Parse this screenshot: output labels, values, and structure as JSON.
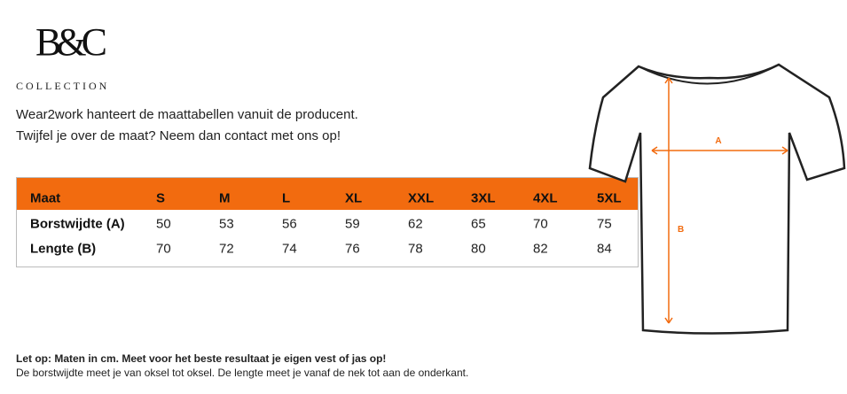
{
  "logo": {
    "mark": "B&C",
    "sub": "COLLECTION"
  },
  "intro": [
    "Wear2work hanteert de maattabellen vanuit de producent.",
    "Twijfel je over de maat? Neem dan contact met ons op!"
  ],
  "table": {
    "header": [
      "Maat",
      "S",
      "M",
      "L",
      "XL",
      "XXL",
      "3XL",
      "4XL",
      "5XL"
    ],
    "rows": [
      [
        "Borstwijdte (A)",
        50,
        53,
        56,
        59,
        62,
        65,
        70,
        75
      ],
      [
        "Lengte (B)",
        70,
        72,
        74,
        76,
        78,
        80,
        82,
        84
      ]
    ]
  },
  "diagram": {
    "width_label": "A",
    "length_label": "B"
  },
  "footer": {
    "note": "Let op: Maten in cm. Meet voor het beste resultaat je eigen vest of jas op!",
    "detail": "De borstwijdte meet je van oksel tot oksel. De lengte meet je vanaf de nek tot aan de onderkant."
  }
}
